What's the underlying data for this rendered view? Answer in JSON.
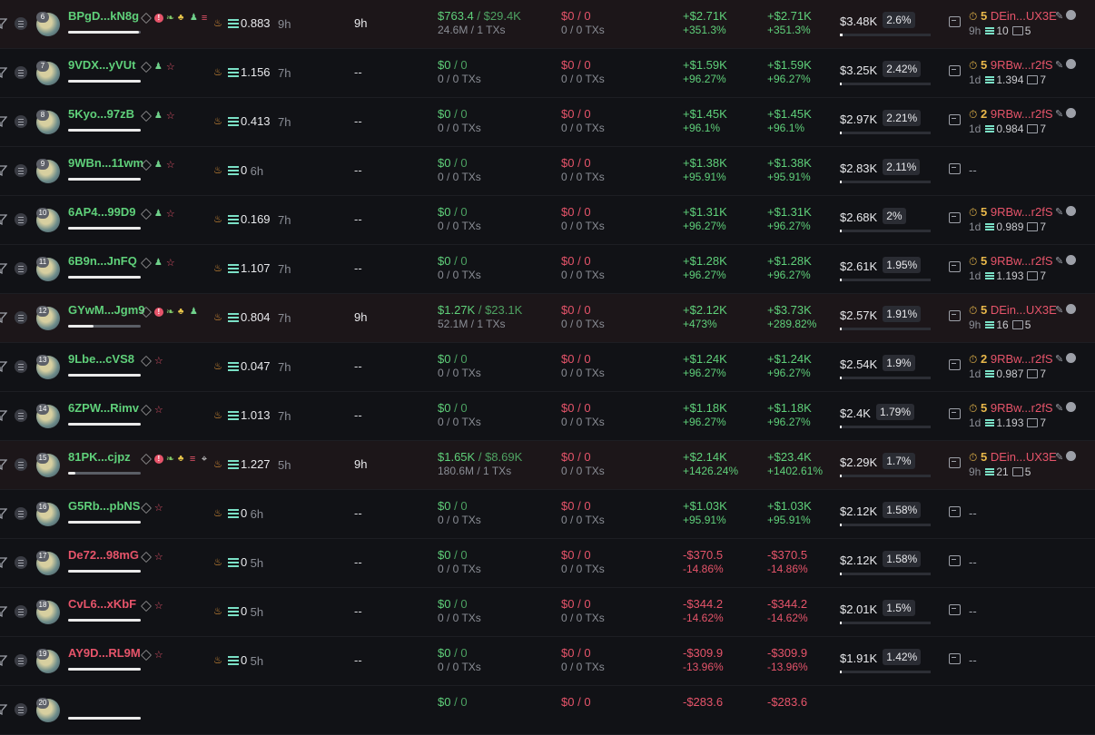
{
  "colors": {
    "green": "#5fd07a",
    "red": "#e6546a",
    "background": "#111216",
    "highlight_row": "#1c1619"
  },
  "rows": [
    {
      "rank": "6",
      "wallet": "BPgD...kN8g",
      "wallet_color": "green",
      "tags": [
        "pencil",
        "alert",
        "leaf",
        "people",
        "user",
        "stack"
      ],
      "highlight": true,
      "sol_balance": "0.883",
      "last_active": "9h",
      "holding_time": "9h",
      "bought_usd": "$763.4",
      "bought_sep": "/",
      "bought_sol": "$29.4K",
      "bought_tokens": "24.6M / 1 TXs",
      "sold_usd": "$0",
      "sold_sep": "/",
      "sold_sol": "0",
      "sold_tokens": "0 / 0 TXs",
      "pnl": "+$2.71K",
      "pnl_pct": "+351.3%",
      "pnl_color": "green",
      "upnl": "+$2.71K",
      "upnl_pct": "+351.3%",
      "upnl_color": "green",
      "balance": "$3.48K",
      "balance_pct": "2.6%",
      "balance_frac": 0.03,
      "dev_num": "5",
      "dev_name": "DEin...UX3E",
      "dev_age": "9h",
      "dev_sol": "10",
      "dev_tokens": "5",
      "fund_num_color": "yellow",
      "wallet_bar": 0.98
    },
    {
      "rank": "7",
      "wallet": "9VDX...yVUt",
      "wallet_color": "green",
      "tags": [
        "pencil",
        "user",
        "link"
      ],
      "highlight": false,
      "sol_balance": "1.156",
      "last_active": "7h",
      "holding_time": "--",
      "bought_usd": "$0",
      "bought_sep": "/",
      "bought_sol": "0",
      "bought_tokens": "0 / 0 TXs",
      "sold_usd": "$0",
      "sold_sep": "/",
      "sold_sol": "0",
      "sold_tokens": "0 / 0 TXs",
      "pnl": "+$1.59K",
      "pnl_pct": "+96.27%",
      "pnl_color": "green",
      "upnl": "+$1.59K",
      "upnl_pct": "+96.27%",
      "upnl_color": "green",
      "balance": "$3.25K",
      "balance_pct": "2.42%",
      "balance_frac": 0.02,
      "dev_num": "5",
      "dev_name": "9RBw...r2fS",
      "dev_age": "1d",
      "dev_sol": "1.394",
      "dev_tokens": "7",
      "wallet_bar": 1.0
    },
    {
      "rank": "8",
      "wallet": "5Kyo...97zB",
      "wallet_color": "green",
      "tags": [
        "pencil",
        "user",
        "link"
      ],
      "highlight": false,
      "sol_balance": "0.413",
      "last_active": "7h",
      "holding_time": "--",
      "bought_usd": "$0",
      "bought_sep": "/",
      "bought_sol": "0",
      "bought_tokens": "0 / 0 TXs",
      "sold_usd": "$0",
      "sold_sep": "/",
      "sold_sol": "0",
      "sold_tokens": "0 / 0 TXs",
      "pnl": "+$1.45K",
      "pnl_pct": "+96.1%",
      "pnl_color": "green",
      "upnl": "+$1.45K",
      "upnl_pct": "+96.1%",
      "upnl_color": "green",
      "balance": "$2.97K",
      "balance_pct": "2.21%",
      "balance_frac": 0.02,
      "dev_num": "2",
      "dev_name": "9RBw...r2fS",
      "dev_age": "1d",
      "dev_sol": "0.984",
      "dev_tokens": "7",
      "wallet_bar": 1.0
    },
    {
      "rank": "9",
      "wallet": "9WBn...11wm",
      "wallet_color": "green",
      "tags": [
        "pencil",
        "user",
        "link"
      ],
      "highlight": false,
      "sol_balance": "0",
      "last_active": "6h",
      "holding_time": "--",
      "bought_usd": "$0",
      "bought_sep": "/",
      "bought_sol": "0",
      "bought_tokens": "0 / 0 TXs",
      "sold_usd": "$0",
      "sold_sep": "/",
      "sold_sol": "0",
      "sold_tokens": "0 / 0 TXs",
      "pnl": "+$1.38K",
      "pnl_pct": "+95.91%",
      "pnl_color": "green",
      "upnl": "+$1.38K",
      "upnl_pct": "+95.91%",
      "upnl_color": "green",
      "balance": "$2.83K",
      "balance_pct": "2.11%",
      "balance_frac": 0.02,
      "dev_none": "--",
      "wallet_bar": 1.0
    },
    {
      "rank": "10",
      "wallet": "6AP4...99D9",
      "wallet_color": "green",
      "tags": [
        "pencil",
        "user",
        "link"
      ],
      "highlight": false,
      "sol_balance": "0.169",
      "last_active": "7h",
      "holding_time": "--",
      "bought_usd": "$0",
      "bought_sep": "/",
      "bought_sol": "0",
      "bought_tokens": "0 / 0 TXs",
      "sold_usd": "$0",
      "sold_sep": "/",
      "sold_sol": "0",
      "sold_tokens": "0 / 0 TXs",
      "pnl": "+$1.31K",
      "pnl_pct": "+96.27%",
      "pnl_color": "green",
      "upnl": "+$1.31K",
      "upnl_pct": "+96.27%",
      "upnl_color": "green",
      "balance": "$2.68K",
      "balance_pct": "2%",
      "balance_frac": 0.02,
      "dev_num": "5",
      "dev_name": "9RBw...r2fS",
      "dev_age": "1d",
      "dev_sol": "0.989",
      "dev_tokens": "7",
      "wallet_bar": 1.0
    },
    {
      "rank": "11",
      "wallet": "6B9n...JnFQ",
      "wallet_color": "green",
      "tags": [
        "pencil",
        "user",
        "link"
      ],
      "highlight": false,
      "sol_balance": "1.107",
      "last_active": "7h",
      "holding_time": "--",
      "bought_usd": "$0",
      "bought_sep": "/",
      "bought_sol": "0",
      "bought_tokens": "0 / 0 TXs",
      "sold_usd": "$0",
      "sold_sep": "/",
      "sold_sol": "0",
      "sold_tokens": "0 / 0 TXs",
      "pnl": "+$1.28K",
      "pnl_pct": "+96.27%",
      "pnl_color": "green",
      "upnl": "+$1.28K",
      "upnl_pct": "+96.27%",
      "upnl_color": "green",
      "balance": "$2.61K",
      "balance_pct": "1.95%",
      "balance_frac": 0.02,
      "dev_num": "5",
      "dev_name": "9RBw...r2fS",
      "dev_age": "1d",
      "dev_sol": "1.193",
      "dev_tokens": "7",
      "wallet_bar": 1.0
    },
    {
      "rank": "12",
      "wallet": "GYwM...Jgm9",
      "wallet_color": "green",
      "tags": [
        "pencil",
        "alert",
        "leaf",
        "people",
        "user"
      ],
      "highlight": true,
      "sol_balance": "0.804",
      "last_active": "7h",
      "holding_time": "9h",
      "bought_usd": "$1.27K",
      "bought_sep": "/",
      "bought_sol": "$23.1K",
      "bought_tokens": "52.1M / 1 TXs",
      "sold_usd": "$0",
      "sold_sep": "/",
      "sold_sol": "0",
      "sold_tokens": "0 / 0 TXs",
      "pnl": "+$2.12K",
      "pnl_pct": "+473%",
      "pnl_color": "green",
      "upnl": "+$3.73K",
      "upnl_pct": "+289.82%",
      "upnl_color": "green",
      "balance": "$2.57K",
      "balance_pct": "1.91%",
      "balance_frac": 0.02,
      "dev_num": "5",
      "dev_name": "DEin...UX3E",
      "dev_age": "9h",
      "dev_sol": "16",
      "dev_tokens": "5",
      "wallet_bar": 0.35
    },
    {
      "rank": "13",
      "wallet": "9Lbe...cVS8",
      "wallet_color": "green",
      "tags": [
        "pencil",
        "link"
      ],
      "highlight": false,
      "sol_balance": "0.047",
      "last_active": "7h",
      "holding_time": "--",
      "bought_usd": "$0",
      "bought_sep": "/",
      "bought_sol": "0",
      "bought_tokens": "0 / 0 TXs",
      "sold_usd": "$0",
      "sold_sep": "/",
      "sold_sol": "0",
      "sold_tokens": "0 / 0 TXs",
      "pnl": "+$1.24K",
      "pnl_pct": "+96.27%",
      "pnl_color": "green",
      "upnl": "+$1.24K",
      "upnl_pct": "+96.27%",
      "upnl_color": "green",
      "balance": "$2.54K",
      "balance_pct": "1.9%",
      "balance_frac": 0.02,
      "dev_num": "2",
      "dev_name": "9RBw...r2fS",
      "dev_age": "1d",
      "dev_sol": "0.987",
      "dev_tokens": "7",
      "wallet_bar": 1.0
    },
    {
      "rank": "14",
      "wallet": "6ZPW...Rimv",
      "wallet_color": "green",
      "tags": [
        "pencil",
        "link"
      ],
      "highlight": false,
      "sol_balance": "1.013",
      "last_active": "7h",
      "holding_time": "--",
      "bought_usd": "$0",
      "bought_sep": "/",
      "bought_sol": "0",
      "bought_tokens": "0 / 0 TXs",
      "sold_usd": "$0",
      "sold_sep": "/",
      "sold_sol": "0",
      "sold_tokens": "0 / 0 TXs",
      "pnl": "+$1.18K",
      "pnl_pct": "+96.27%",
      "pnl_color": "green",
      "upnl": "+$1.18K",
      "upnl_pct": "+96.27%",
      "upnl_color": "green",
      "balance": "$2.4K",
      "balance_pct": "1.79%",
      "balance_frac": 0.02,
      "dev_num": "5",
      "dev_name": "9RBw...r2fS",
      "dev_age": "1d",
      "dev_sol": "1.193",
      "dev_tokens": "7",
      "wallet_bar": 1.0
    },
    {
      "rank": "15",
      "wallet": "81PK...cjpz",
      "wallet_color": "green",
      "tags": [
        "pencil",
        "alert",
        "leaf",
        "people",
        "stack",
        "target"
      ],
      "highlight": true,
      "sol_balance": "1.227",
      "last_active": "5h",
      "holding_time": "9h",
      "bought_usd": "$1.65K",
      "bought_sep": "/",
      "bought_sol": "$8.69K",
      "bought_tokens": "180.6M / 1 TXs",
      "sold_usd": "$0",
      "sold_sep": "/",
      "sold_sol": "0",
      "sold_tokens": "0 / 0 TXs",
      "pnl": "+$2.14K",
      "pnl_pct": "+1426.24%",
      "pnl_color": "green",
      "upnl": "+$23.4K",
      "upnl_pct": "+1402.61%",
      "upnl_color": "green",
      "balance": "$2.29K",
      "balance_pct": "1.7%",
      "balance_frac": 0.02,
      "dev_num": "5",
      "dev_name": "DEin...UX3E",
      "dev_age": "9h",
      "dev_sol": "21",
      "dev_tokens": "5",
      "wallet_bar": 0.1
    },
    {
      "rank": "16",
      "wallet": "G5Rb...pbNS",
      "wallet_color": "green",
      "tags": [
        "pencil",
        "link"
      ],
      "highlight": false,
      "sol_balance": "0",
      "last_active": "6h",
      "holding_time": "--",
      "bought_usd": "$0",
      "bought_sep": "/",
      "bought_sol": "0",
      "bought_tokens": "0 / 0 TXs",
      "sold_usd": "$0",
      "sold_sep": "/",
      "sold_sol": "0",
      "sold_tokens": "0 / 0 TXs",
      "pnl": "+$1.03K",
      "pnl_pct": "+95.91%",
      "pnl_color": "green",
      "upnl": "+$1.03K",
      "upnl_pct": "+95.91%",
      "upnl_color": "green",
      "balance": "$2.12K",
      "balance_pct": "1.58%",
      "balance_frac": 0.02,
      "dev_none": "--",
      "wallet_bar": 1.0
    },
    {
      "rank": "17",
      "wallet": "De72...98mG",
      "wallet_color": "red",
      "tags": [
        "pencil",
        "link"
      ],
      "highlight": false,
      "sol_balance": "0",
      "last_active": "5h",
      "holding_time": "--",
      "bought_usd": "$0",
      "bought_sep": "/",
      "bought_sol": "0",
      "bought_tokens": "0 / 0 TXs",
      "sold_usd": "$0",
      "sold_sep": "/",
      "sold_sol": "0",
      "sold_tokens": "0 / 0 TXs",
      "pnl": "-$370.5",
      "pnl_pct": "-14.86%",
      "pnl_color": "red",
      "upnl": "-$370.5",
      "upnl_pct": "-14.86%",
      "upnl_color": "red",
      "balance": "$2.12K",
      "balance_pct": "1.58%",
      "balance_frac": 0.02,
      "dev_none": "--",
      "wallet_bar": 1.0
    },
    {
      "rank": "18",
      "wallet": "CvL6...xKbF",
      "wallet_color": "red",
      "tags": [
        "pencil",
        "link"
      ],
      "highlight": false,
      "sol_balance": "0",
      "last_active": "5h",
      "holding_time": "--",
      "bought_usd": "$0",
      "bought_sep": "/",
      "bought_sol": "0",
      "bought_tokens": "0 / 0 TXs",
      "sold_usd": "$0",
      "sold_sep": "/",
      "sold_sol": "0",
      "sold_tokens": "0 / 0 TXs",
      "pnl": "-$344.2",
      "pnl_pct": "-14.62%",
      "pnl_color": "red",
      "upnl": "-$344.2",
      "upnl_pct": "-14.62%",
      "upnl_color": "red",
      "balance": "$2.01K",
      "balance_pct": "1.5%",
      "balance_frac": 0.02,
      "dev_none": "--",
      "wallet_bar": 1.0
    },
    {
      "rank": "19",
      "wallet": "AY9D...RL9M",
      "wallet_color": "red",
      "tags": [
        "pencil",
        "link"
      ],
      "highlight": false,
      "sol_balance": "0",
      "last_active": "5h",
      "holding_time": "--",
      "bought_usd": "$0",
      "bought_sep": "/",
      "bought_sol": "0",
      "bought_tokens": "0 / 0 TXs",
      "sold_usd": "$0",
      "sold_sep": "/",
      "sold_sol": "0",
      "sold_tokens": "0 / 0 TXs",
      "pnl": "-$309.9",
      "pnl_pct": "-13.96%",
      "pnl_color": "red",
      "upnl": "-$309.9",
      "upnl_pct": "-13.96%",
      "upnl_color": "red",
      "balance": "$1.91K",
      "balance_pct": "1.42%",
      "balance_frac": 0.02,
      "dev_none": "--",
      "wallet_bar": 1.0
    },
    {
      "rank": "20",
      "wallet": "",
      "wallet_color": "green",
      "tags": [],
      "highlight": false,
      "sol_balance": "",
      "last_active": "",
      "holding_time": "",
      "bought_usd": "$0",
      "bought_sep": "/",
      "bought_sol": "0",
      "bought_tokens": "",
      "sold_usd": "$0",
      "sold_sep": "/",
      "sold_sol": "0",
      "sold_tokens": "",
      "pnl": "-$283.6",
      "pnl_pct": "",
      "pnl_color": "red",
      "upnl": "-$283.6",
      "upnl_pct": "",
      "upnl_color": "red",
      "balance": "",
      "balance_pct": "",
      "balance_frac": 0,
      "dev_none": "",
      "wallet_bar": 1.0
    }
  ]
}
